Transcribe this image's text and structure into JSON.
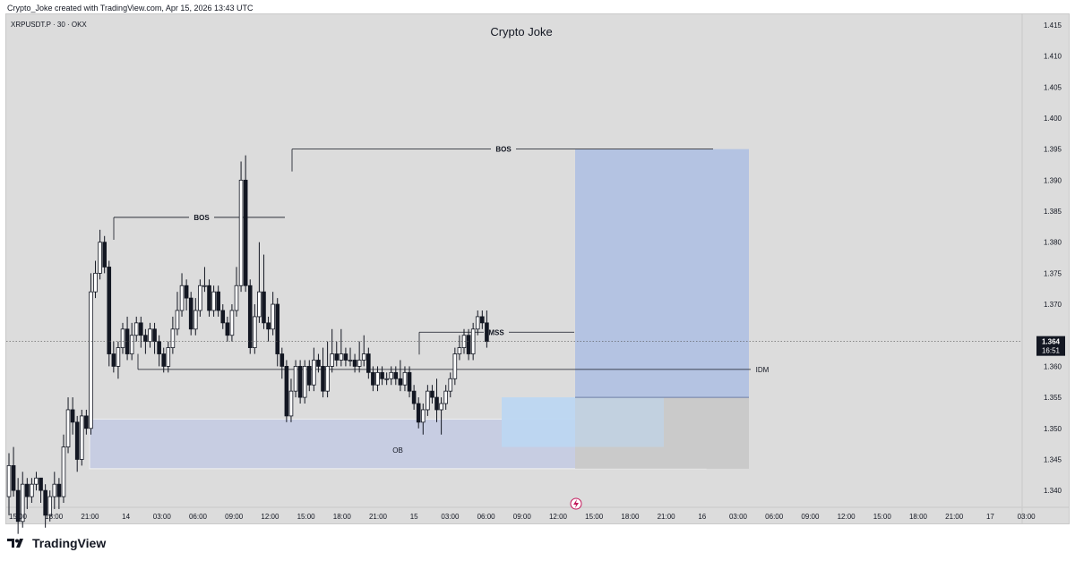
{
  "caption": "Crypto_Joke created with TradingView.com, Apr 15, 2026 13:43 UTC",
  "symbol": "XRPUSDT.P · 30 · OKX",
  "brand": "TradingView",
  "colors": {
    "background": "#dcdcdc",
    "bull_candle": "#ffffff",
    "bear_candle": "#131722",
    "ob_zone": "#c5cbe2",
    "ob_zone_light": "#bcd7f2",
    "target_zone": "#b4c3e2",
    "stop_zone": "#cacaca",
    "price_tag": "#131722"
  },
  "chart_data": {
    "type": "candlestick",
    "title": "Crypto Joke",
    "ylim": [
      1.338,
      1.416
    ],
    "y_ticks": [
      "1.415",
      "1.410",
      "1.405",
      "1.400",
      "1.395",
      "1.390",
      "1.385",
      "1.380",
      "1.375",
      "1.370",
      "1.365",
      "1.360",
      "1.355",
      "1.350",
      "1.345",
      "1.340"
    ],
    "x_ticks": [
      "15:00",
      "18:00",
      "21:00",
      "14",
      "03:00",
      "06:00",
      "09:00",
      "12:00",
      "15:00",
      "18:00",
      "21:00",
      "15",
      "03:00",
      "06:00",
      "09:00",
      "12:00",
      "15:00",
      "18:00",
      "21:00",
      "16",
      "03:00",
      "06:00",
      "09:00",
      "12:00",
      "15:00",
      "18:00",
      "21:00",
      "17",
      "03:00"
    ],
    "current_price": "1.364",
    "countdown": "16:51",
    "candles": [
      [
        1.339,
        1.344,
        1.336,
        1.346
      ],
      [
        1.344,
        1.34,
        1.339,
        1.347
      ],
      [
        1.34,
        1.335,
        1.333,
        1.342
      ],
      [
        1.335,
        1.341,
        1.334,
        1.343
      ],
      [
        1.341,
        1.339,
        1.337,
        1.342
      ],
      [
        1.339,
        1.341,
        1.338,
        1.342
      ],
      [
        1.341,
        1.342,
        1.34,
        1.343
      ],
      [
        1.342,
        1.34,
        1.338,
        1.342
      ],
      [
        1.34,
        1.336,
        1.334,
        1.341
      ],
      [
        1.336,
        1.339,
        1.335,
        1.34
      ],
      [
        1.339,
        1.341,
        1.337,
        1.343
      ],
      [
        1.341,
        1.339,
        1.337,
        1.342
      ],
      [
        1.339,
        1.347,
        1.338,
        1.349
      ],
      [
        1.347,
        1.353,
        1.346,
        1.355
      ],
      [
        1.353,
        1.351,
        1.349,
        1.355
      ],
      [
        1.351,
        1.345,
        1.343,
        1.352
      ],
      [
        1.345,
        1.352,
        1.344,
        1.353
      ],
      [
        1.352,
        1.35,
        1.349,
        1.353
      ],
      [
        1.35,
        1.372,
        1.349,
        1.375
      ],
      [
        1.372,
        1.375,
        1.371,
        1.377
      ],
      [
        1.375,
        1.38,
        1.374,
        1.382
      ],
      [
        1.38,
        1.376,
        1.375,
        1.381
      ],
      [
        1.376,
        1.362,
        1.36,
        1.377
      ],
      [
        1.362,
        1.36,
        1.359,
        1.364
      ],
      [
        1.36,
        1.363,
        1.358,
        1.364
      ],
      [
        1.363,
        1.366,
        1.362,
        1.367
      ],
      [
        1.366,
        1.362,
        1.361,
        1.368
      ],
      [
        1.362,
        1.365,
        1.361,
        1.367
      ],
      [
        1.365,
        1.367,
        1.364,
        1.368
      ],
      [
        1.367,
        1.365,
        1.363,
        1.368
      ],
      [
        1.365,
        1.364,
        1.362,
        1.366
      ],
      [
        1.364,
        1.366,
        1.363,
        1.367
      ],
      [
        1.366,
        1.364,
        1.362,
        1.367
      ],
      [
        1.364,
        1.362,
        1.36,
        1.365
      ],
      [
        1.362,
        1.36,
        1.359,
        1.363
      ],
      [
        1.36,
        1.363,
        1.359,
        1.364
      ],
      [
        1.363,
        1.366,
        1.362,
        1.368
      ],
      [
        1.366,
        1.369,
        1.365,
        1.372
      ],
      [
        1.369,
        1.373,
        1.368,
        1.375
      ],
      [
        1.373,
        1.371,
        1.369,
        1.374
      ],
      [
        1.371,
        1.366,
        1.365,
        1.372
      ],
      [
        1.366,
        1.369,
        1.365,
        1.371
      ],
      [
        1.369,
        1.373,
        1.368,
        1.374
      ],
      [
        1.373,
        1.373,
        1.372,
        1.376
      ],
      [
        1.373,
        1.369,
        1.368,
        1.374
      ],
      [
        1.369,
        1.372,
        1.368,
        1.373
      ],
      [
        1.372,
        1.369,
        1.368,
        1.373
      ],
      [
        1.369,
        1.367,
        1.366,
        1.37
      ],
      [
        1.367,
        1.365,
        1.364,
        1.368
      ],
      [
        1.365,
        1.369,
        1.364,
        1.37
      ],
      [
        1.369,
        1.373,
        1.368,
        1.376
      ],
      [
        1.373,
        1.39,
        1.372,
        1.393
      ],
      [
        1.39,
        1.373,
        1.372,
        1.394
      ],
      [
        1.373,
        1.363,
        1.362,
        1.374
      ],
      [
        1.363,
        1.368,
        1.362,
        1.37
      ],
      [
        1.368,
        1.372,
        1.367,
        1.38
      ],
      [
        1.372,
        1.367,
        1.366,
        1.378
      ],
      [
        1.367,
        1.366,
        1.364,
        1.368
      ],
      [
        1.366,
        1.37,
        1.365,
        1.372
      ],
      [
        1.37,
        1.362,
        1.36,
        1.371
      ],
      [
        1.362,
        1.36,
        1.358,
        1.363
      ],
      [
        1.36,
        1.352,
        1.351,
        1.361
      ],
      [
        1.352,
        1.356,
        1.351,
        1.358
      ],
      [
        1.356,
        1.36,
        1.355,
        1.361
      ],
      [
        1.36,
        1.355,
        1.354,
        1.361
      ],
      [
        1.355,
        1.36,
        1.354,
        1.361
      ],
      [
        1.36,
        1.357,
        1.356,
        1.361
      ],
      [
        1.357,
        1.361,
        1.356,
        1.363
      ],
      [
        1.361,
        1.36,
        1.359,
        1.362
      ],
      [
        1.36,
        1.356,
        1.355,
        1.363
      ],
      [
        1.356,
        1.36,
        1.355,
        1.364
      ],
      [
        1.36,
        1.362,
        1.359,
        1.366
      ],
      [
        1.362,
        1.361,
        1.36,
        1.364
      ],
      [
        1.361,
        1.362,
        1.36,
        1.366
      ],
      [
        1.362,
        1.361,
        1.36,
        1.363
      ],
      [
        1.361,
        1.361,
        1.36,
        1.363
      ],
      [
        1.361,
        1.36,
        1.359,
        1.362
      ],
      [
        1.36,
        1.361,
        1.359,
        1.364
      ],
      [
        1.361,
        1.362,
        1.36,
        1.365
      ],
      [
        1.362,
        1.359,
        1.358,
        1.363
      ],
      [
        1.359,
        1.357,
        1.356,
        1.36
      ],
      [
        1.357,
        1.359,
        1.356,
        1.36
      ],
      [
        1.359,
        1.358,
        1.357,
        1.36
      ],
      [
        1.358,
        1.358,
        1.357,
        1.359
      ],
      [
        1.358,
        1.359,
        1.357,
        1.36
      ],
      [
        1.359,
        1.358,
        1.357,
        1.36
      ],
      [
        1.358,
        1.357,
        1.356,
        1.361
      ],
      [
        1.357,
        1.359,
        1.356,
        1.36
      ],
      [
        1.359,
        1.356,
        1.355,
        1.36
      ],
      [
        1.356,
        1.354,
        1.353,
        1.357
      ],
      [
        1.354,
        1.351,
        1.35,
        1.355
      ],
      [
        1.351,
        1.353,
        1.349,
        1.354
      ],
      [
        1.353,
        1.356,
        1.352,
        1.357
      ],
      [
        1.356,
        1.355,
        1.354,
        1.357
      ],
      [
        1.355,
        1.353,
        1.351,
        1.358
      ],
      [
        1.353,
        1.354,
        1.349,
        1.355
      ],
      [
        1.354,
        1.356,
        1.353,
        1.357
      ],
      [
        1.356,
        1.358,
        1.355,
        1.359
      ],
      [
        1.358,
        1.362,
        1.357,
        1.363
      ],
      [
        1.362,
        1.363,
        1.361,
        1.365
      ],
      [
        1.363,
        1.365,
        1.362,
        1.366
      ],
      [
        1.365,
        1.362,
        1.361,
        1.366
      ],
      [
        1.362,
        1.366,
        1.361,
        1.367
      ],
      [
        1.366,
        1.368,
        1.365,
        1.369
      ],
      [
        1.368,
        1.367,
        1.366,
        1.369
      ],
      [
        1.367,
        1.364,
        1.363,
        1.369
      ]
    ],
    "levels": [
      {
        "label": "BOS",
        "price": 1.384
      },
      {
        "label": "BOS",
        "price": 1.395
      },
      {
        "label": "MSS",
        "price": 1.3655
      },
      {
        "label": "IDM",
        "price": 1.3595
      }
    ],
    "zones": [
      {
        "label": "OB",
        "top": 1.3515,
        "bottom": 1.3435
      },
      {
        "label": "OB",
        "top": 1.355,
        "bottom": 1.347
      },
      {
        "label": "",
        "top": 1.395,
        "bottom": 1.355
      },
      {
        "label": "",
        "top": 1.355,
        "bottom": 1.3435
      }
    ]
  }
}
